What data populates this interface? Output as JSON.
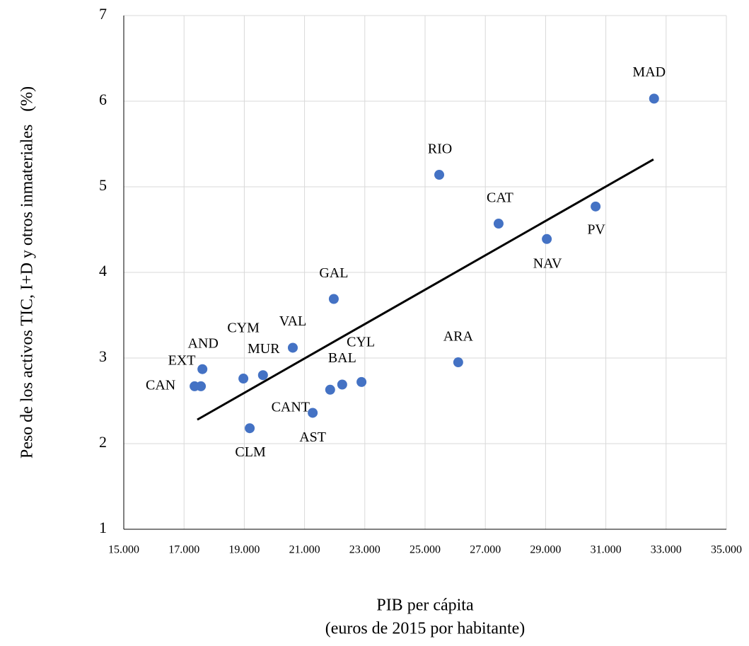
{
  "chart_data": {
    "type": "scatter",
    "xlabel": [
      "PIB per cápita",
      "(euros de 2015 por habitante)"
    ],
    "ylabel": "Peso de los activos TIC, I+D y otros inmateriales   (%)",
    "xlim": [
      15000,
      35000
    ],
    "xticks": [
      {
        "value": 15000,
        "label": "15.000"
      },
      {
        "value": 17000,
        "label": "17.000"
      },
      {
        "value": 19000,
        "label": "19.000"
      },
      {
        "value": 21000,
        "label": "21.000"
      },
      {
        "value": 23000,
        "label": "23.000"
      },
      {
        "value": 25000,
        "label": "25.000"
      },
      {
        "value": 27000,
        "label": "27.000"
      },
      {
        "value": 29000,
        "label": "29.000"
      },
      {
        "value": 31000,
        "label": "31.000"
      },
      {
        "value": 33000,
        "label": "33.000"
      },
      {
        "value": 35000,
        "label": "35.000"
      }
    ],
    "ylim": [
      1,
      7
    ],
    "yticks": [
      1,
      2,
      3,
      4,
      5,
      6,
      7
    ],
    "grid": true,
    "color": "#4472c4",
    "labels": [
      "MAD",
      "RIO",
      "CAT",
      "NAV",
      "PV",
      "GAL",
      "ARA",
      "VAL",
      "CYL",
      "BAL",
      "CANT",
      "AST",
      "CLM",
      "MUR",
      "CYM",
      "AND",
      "EXT",
      "CAN"
    ],
    "x": [
      32600,
      25470,
      27440,
      29040,
      30660,
      21970,
      26100,
      20610,
      22890,
      22250,
      21850,
      21270,
      19180,
      19620,
      18970,
      17610,
      17560,
      17350
    ],
    "y": [
      6.03,
      5.14,
      4.57,
      4.39,
      4.77,
      3.69,
      2.95,
      3.12,
      2.72,
      2.69,
      2.63,
      2.36,
      2.18,
      2.8,
      2.76,
      2.87,
      2.67,
      2.67
    ],
    "trendline": {
      "color": "#000000",
      "x": [
        17440,
        32580
      ],
      "y": [
        2.28,
        5.32
      ]
    }
  }
}
